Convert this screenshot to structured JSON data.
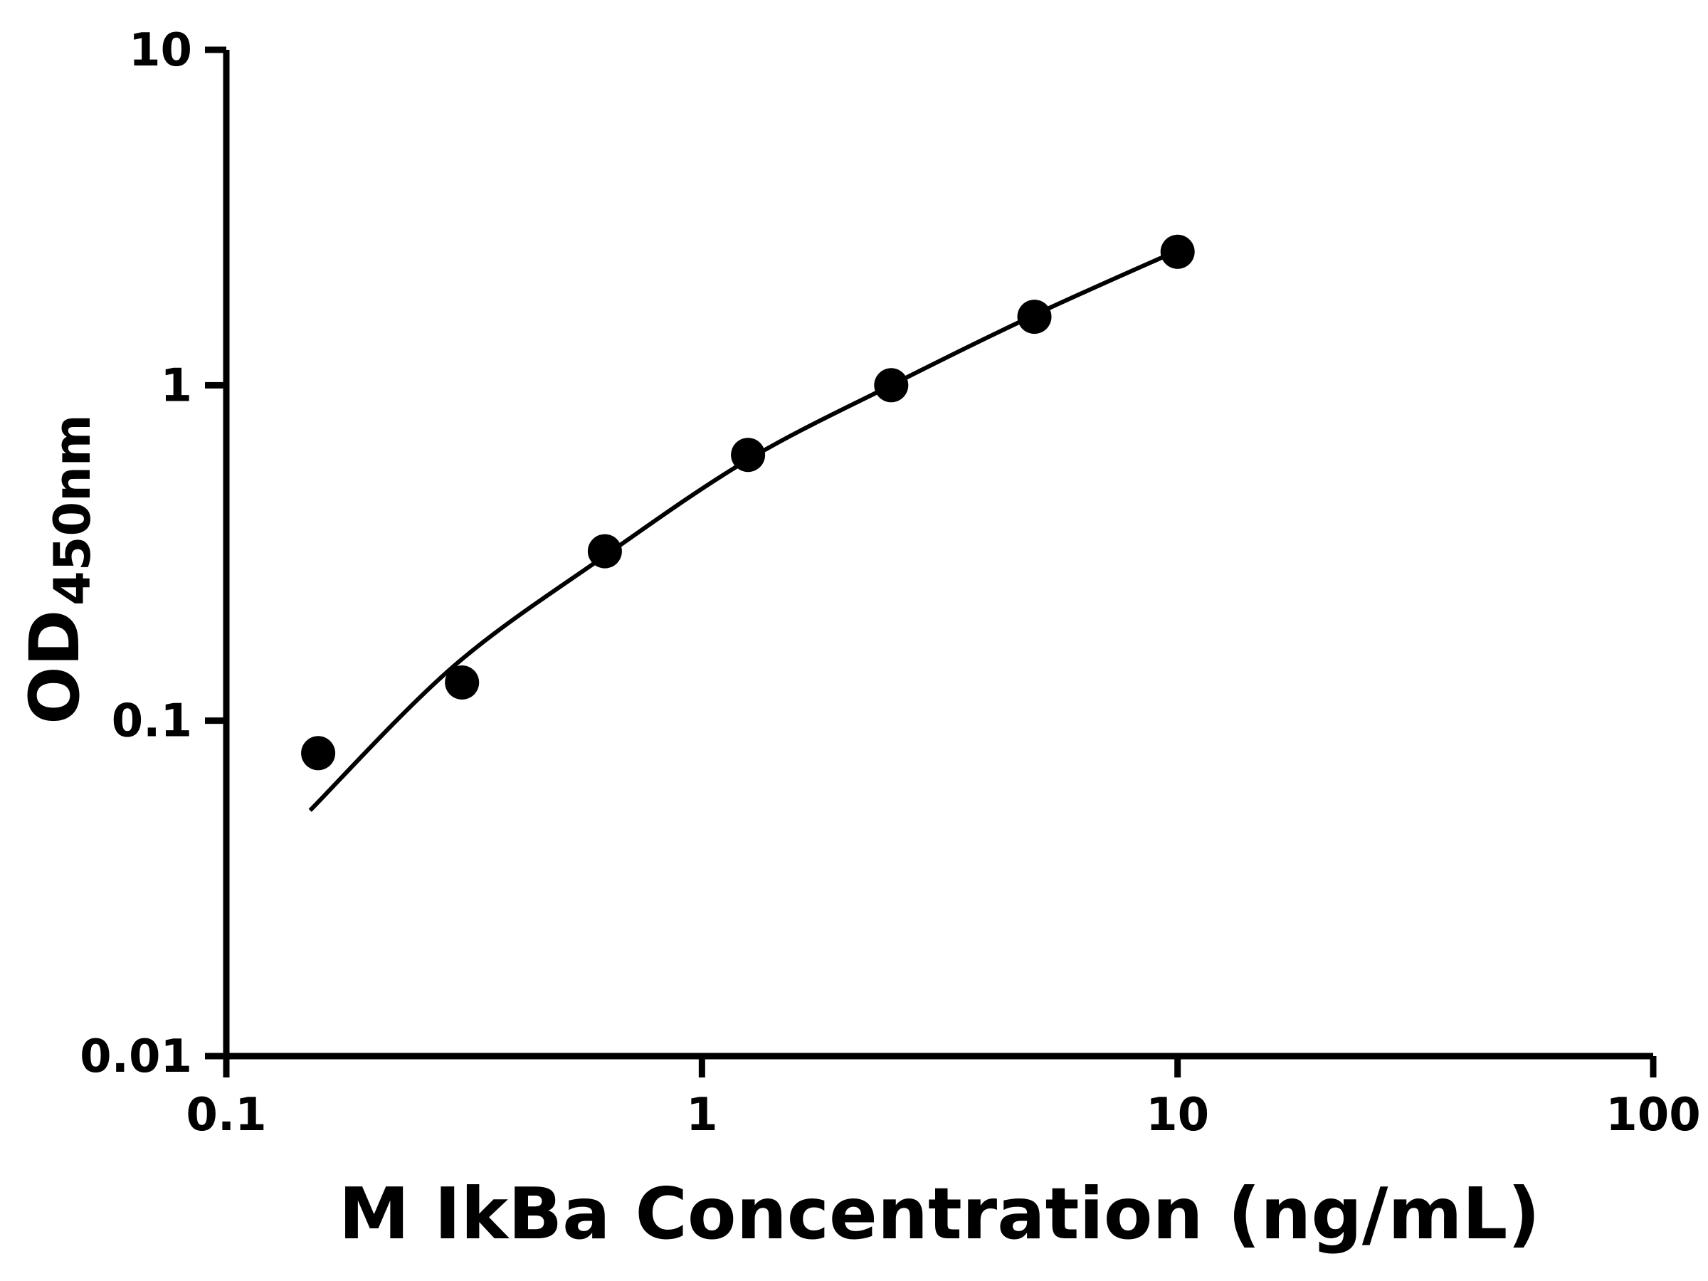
{
  "chart_data": {
    "type": "scatter",
    "title": "",
    "xlabel": "M IkBa Concentration (ng/mL)",
    "ylabel_main": "OD",
    "ylabel_sub": "450nm",
    "x_scale": "log",
    "y_scale": "log",
    "xlim": [
      0.1,
      100
    ],
    "ylim": [
      0.01,
      10
    ],
    "x_ticks": [
      0.1,
      1,
      10,
      100
    ],
    "x_tick_labels": [
      "0.1",
      "1",
      "10",
      "100"
    ],
    "y_ticks": [
      0.01,
      0.1,
      1,
      10
    ],
    "y_tick_labels": [
      "0.01",
      "0.1",
      "1",
      "10"
    ],
    "grid": false,
    "legend": false,
    "marker_color": "#000000",
    "line_color": "#000000",
    "x": [
      0.156,
      0.313,
      0.625,
      1.25,
      2.5,
      5,
      10
    ],
    "y": [
      0.08,
      0.13,
      0.32,
      0.62,
      1.0,
      1.6,
      2.5
    ],
    "fit_curve": [
      [
        0.15,
        0.054
      ],
      [
        0.3,
        0.145
      ],
      [
        0.625,
        0.31
      ],
      [
        1.25,
        0.6
      ],
      [
        2.5,
        1.0
      ],
      [
        5,
        1.62
      ],
      [
        10,
        2.52
      ]
    ]
  }
}
